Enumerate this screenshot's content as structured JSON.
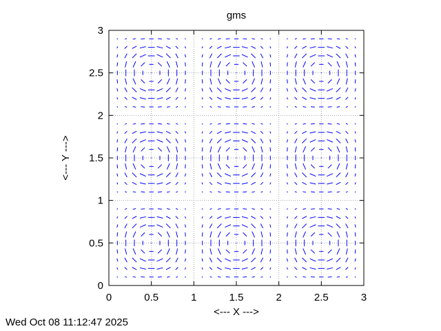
{
  "chart_data": {
    "type": "vector-field",
    "title": "gms",
    "xlabel": "<--- X --->",
    "ylabel": "<--- Y --->",
    "xlim": [
      0,
      3
    ],
    "ylim": [
      0,
      3
    ],
    "x_ticks": [
      "0",
      "0.5",
      "1",
      "1.5",
      "2",
      "2.5",
      "3"
    ],
    "y_ticks": [
      "0",
      "0.5",
      "1",
      "1.5",
      "2",
      "2.5",
      "3"
    ],
    "grid": true,
    "grid_style": "dotted",
    "grid_x": [
      0.5,
      1,
      1.5,
      2,
      2.5
    ],
    "grid_y": [
      0.5,
      1,
      1.5,
      2,
      2.5
    ],
    "sample_x": [
      0.1,
      0.2,
      0.3,
      0.4,
      0.5,
      0.6,
      0.7,
      0.8,
      0.9,
      1.1,
      1.2,
      1.3,
      1.4,
      1.5,
      1.6,
      1.7,
      1.8,
      1.9,
      2.1,
      2.2,
      2.3,
      2.4,
      2.5,
      2.6,
      2.7,
      2.8,
      2.9
    ],
    "sample_y": [
      0.1,
      0.2,
      0.3,
      0.4,
      0.5,
      0.6,
      0.7,
      0.8,
      0.9,
      1.1,
      1.2,
      1.3,
      1.4,
      1.5,
      1.6,
      1.7,
      1.8,
      1.9,
      2.1,
      2.2,
      2.3,
      2.4,
      2.5,
      2.6,
      2.7,
      2.8,
      2.9
    ],
    "field": {
      "u": "-sin(pi*x)^2 * sin(2*pi*y)",
      "v": "sin(pi*y)^2 * sin(2*pi*x)"
    },
    "vector_color": "#0000ff",
    "timestamp": "Wed Oct 08 11:12:47 2025"
  }
}
